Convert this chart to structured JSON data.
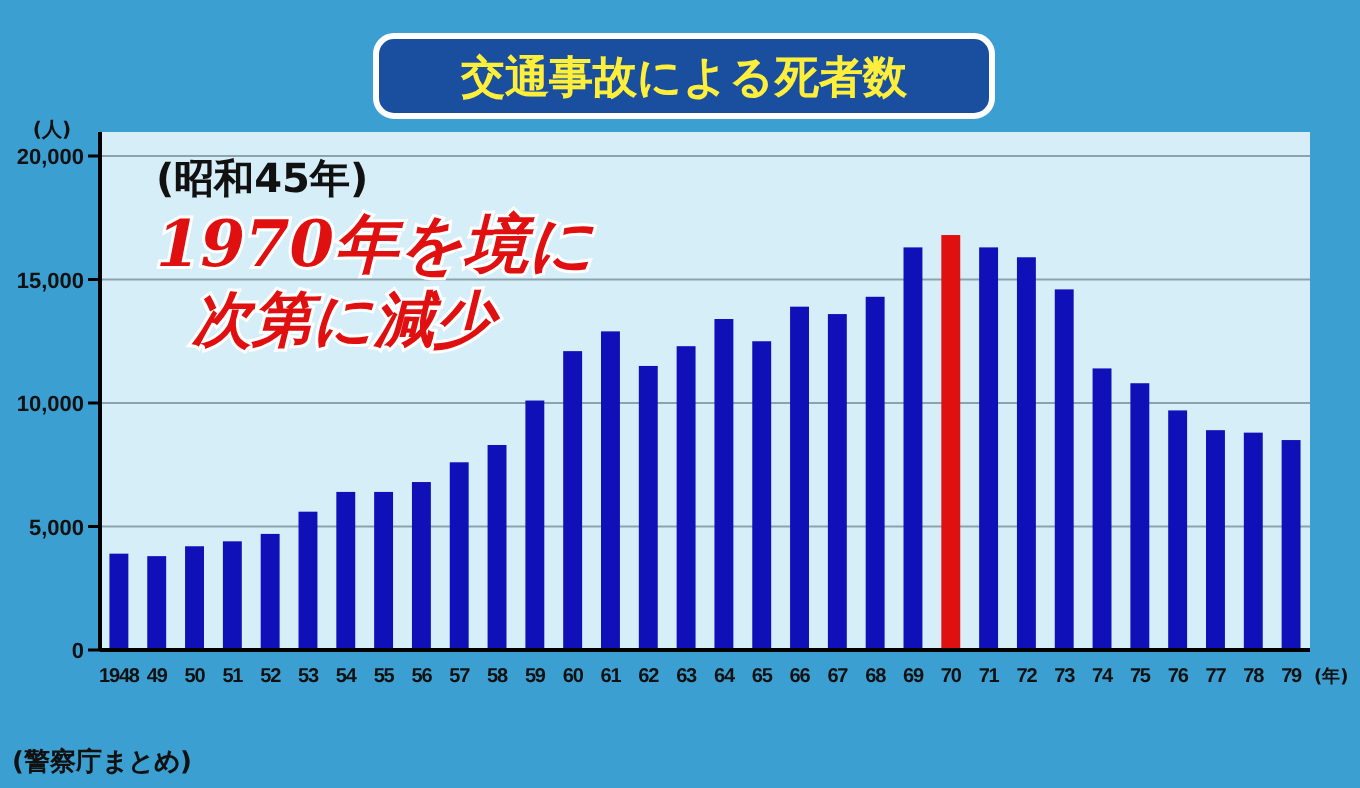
{
  "chart_data": {
    "type": "bar",
    "title": "交通事故による死者数",
    "ylabel": "(人)",
    "xlabel": "(年)",
    "categories": [
      "1948",
      "49",
      "50",
      "51",
      "52",
      "53",
      "54",
      "55",
      "56",
      "57",
      "58",
      "59",
      "60",
      "61",
      "62",
      "63",
      "64",
      "65",
      "66",
      "67",
      "68",
      "69",
      "70",
      "71",
      "72",
      "73",
      "74",
      "75",
      "76",
      "77",
      "78",
      "79"
    ],
    "values": [
      3900,
      3800,
      4200,
      4400,
      4700,
      5600,
      6400,
      6400,
      6800,
      7600,
      8300,
      10100,
      12100,
      12900,
      11500,
      12300,
      13400,
      12500,
      13900,
      13600,
      14300,
      16300,
      16800,
      16300,
      15900,
      14600,
      11400,
      10800,
      9700,
      8900,
      8800,
      8500
    ],
    "colors": [
      "#1010b8",
      "#1010b8",
      "#1010b8",
      "#1010b8",
      "#1010b8",
      "#1010b8",
      "#1010b8",
      "#1010b8",
      "#1010b8",
      "#1010b8",
      "#1010b8",
      "#1010b8",
      "#1010b8",
      "#1010b8",
      "#1010b8",
      "#1010b8",
      "#1010b8",
      "#1010b8",
      "#1010b8",
      "#1010b8",
      "#1010b8",
      "#1010b8",
      "#e01010",
      "#1010b8",
      "#1010b8",
      "#1010b8",
      "#1010b8",
      "#1010b8",
      "#1010b8",
      "#1010b8",
      "#1010b8",
      "#1010b8"
    ],
    "ylim": [
      0,
      20000
    ],
    "yticks": [
      0,
      {
        "value": 5000,
        "label": "5,000"
      },
      {
        "value": 10000,
        "label": "10,000"
      },
      {
        "value": 15000,
        "label": "15,000"
      },
      {
        "value": 20000,
        "label": "20,000"
      }
    ],
    "grid": "y",
    "annotations": [
      "(昭和45年)",
      "1970年を境に",
      "次第に減少",
      "(警察庁まとめ)"
    ]
  }
}
